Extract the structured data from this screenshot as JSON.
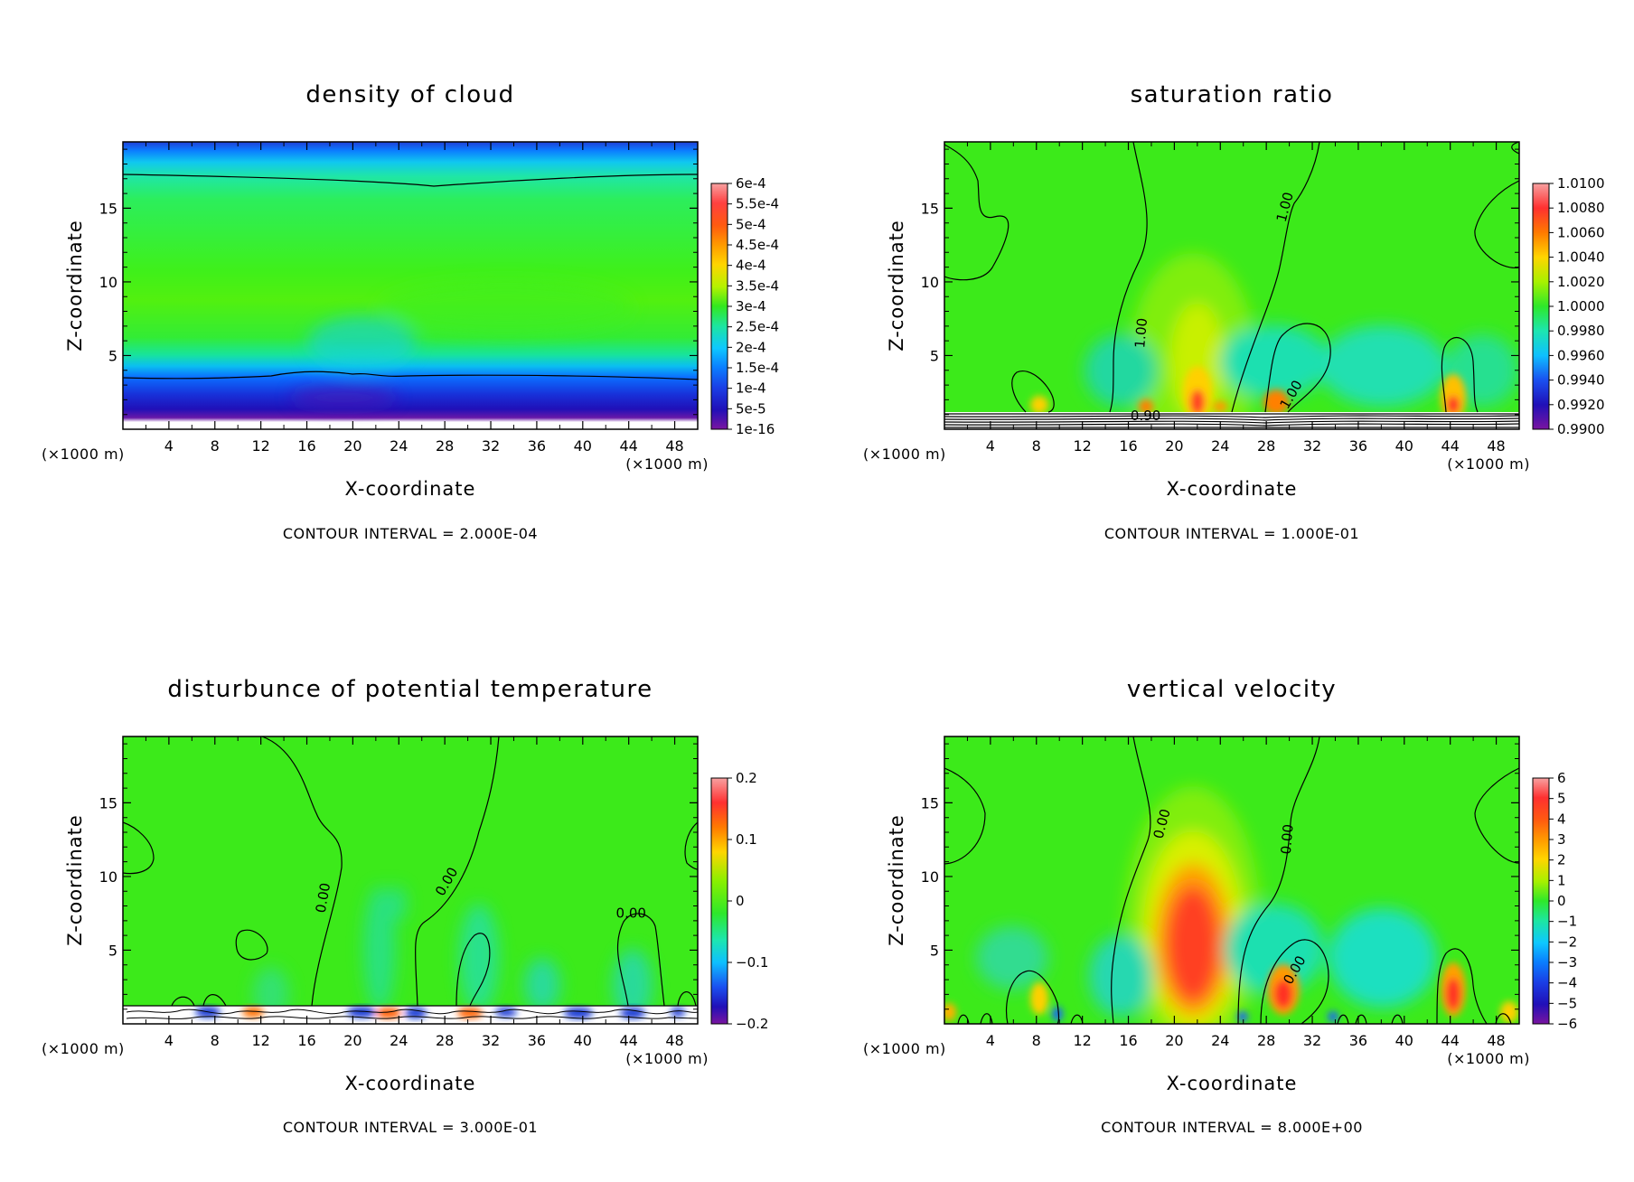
{
  "chart_data": [
    {
      "type": "heatmap",
      "title": "density of cloud",
      "xlabel": "X-coordinate",
      "ylabel": "Z-coordinate",
      "x_unit": "(×1000 m)",
      "y_unit": "(×1000 m)",
      "x_ticks": [
        4,
        8,
        12,
        16,
        20,
        24,
        28,
        32,
        36,
        40,
        44,
        48
      ],
      "y_ticks": [
        5,
        10,
        15
      ],
      "xlim": [
        0,
        50
      ],
      "ylim": [
        0,
        19.5
      ],
      "colorbar": {
        "labels": [
          "6e-4",
          "5.5e-4",
          "5e-4",
          "4.5e-4",
          "4e-4",
          "3.5e-4",
          "3e-4",
          "2.5e-4",
          "2e-4",
          "1.5e-4",
          "1e-4",
          "5e-5",
          "1e-16"
        ]
      },
      "contour_interval": "CONTOUR INTERVAL = 2.000E-04",
      "contour_labels": []
    },
    {
      "type": "heatmap",
      "title": "saturation ratio",
      "xlabel": "X-coordinate",
      "ylabel": "Z-coordinate",
      "x_unit": "(×1000 m)",
      "y_unit": "(×1000 m)",
      "x_ticks": [
        4,
        8,
        12,
        16,
        20,
        24,
        28,
        32,
        36,
        40,
        44,
        48
      ],
      "y_ticks": [
        5,
        10,
        15
      ],
      "xlim": [
        0,
        50
      ],
      "ylim": [
        0,
        19.5
      ],
      "colorbar": {
        "labels": [
          "1.0100",
          "1.0080",
          "1.0060",
          "1.0040",
          "1.0020",
          "1.0000",
          "0.9980",
          "0.9960",
          "0.9940",
          "0.9920",
          "0.9900"
        ]
      },
      "contour_interval": "CONTOUR INTERVAL = 1.000E-01",
      "contour_labels": [
        {
          "text": "1.00",
          "x": 30,
          "z": 15,
          "rot": -75
        },
        {
          "text": "1.00",
          "x": 17.5,
          "z": 6.5,
          "rot": -85
        },
        {
          "text": "1.00",
          "x": 30.5,
          "z": 2.2,
          "rot": -60
        },
        {
          "text": "0.90",
          "x": 17.5,
          "z": 0.6,
          "rot": 0
        }
      ]
    },
    {
      "type": "heatmap",
      "title": "disturbunce of potential temperature",
      "xlabel": "X-coordinate",
      "ylabel": "Z-coordinate",
      "x_unit": "(×1000 m)",
      "y_unit": "(×1000 m)",
      "x_ticks": [
        4,
        8,
        12,
        16,
        20,
        24,
        28,
        32,
        36,
        40,
        44,
        48
      ],
      "y_ticks": [
        5,
        10,
        15
      ],
      "xlim": [
        0,
        50
      ],
      "ylim": [
        0,
        19.5
      ],
      "colorbar": {
        "labels": [
          "0.2",
          "0.1",
          "0",
          "−0.1",
          "−0.2"
        ]
      },
      "contour_interval": "CONTOUR INTERVAL = 3.000E-01",
      "contour_labels": [
        {
          "text": "0.00",
          "x": 17.8,
          "z": 8.5,
          "rot": -80
        },
        {
          "text": "0.00",
          "x": 28.5,
          "z": 9.5,
          "rot": -60
        },
        {
          "text": "0.00",
          "x": 44.2,
          "z": 7.2,
          "rot": 0
        }
      ]
    },
    {
      "type": "heatmap",
      "title": "vertical velocity",
      "xlabel": "X-coordinate",
      "ylabel": "Z-coordinate",
      "x_unit": "(×1000 m)",
      "y_unit": "(×1000 m)",
      "x_ticks": [
        4,
        8,
        12,
        16,
        20,
        24,
        28,
        32,
        36,
        40,
        44,
        48
      ],
      "y_ticks": [
        5,
        10,
        15
      ],
      "xlim": [
        0,
        50
      ],
      "ylim": [
        0,
        19.5
      ],
      "colorbar": {
        "labels": [
          "6",
          "5",
          "4",
          "3",
          "2",
          "1",
          "0",
          "−1",
          "−2",
          "−3",
          "−4",
          "−5",
          "−6"
        ]
      },
      "contour_interval": "CONTOUR INTERVAL = 8.000E+00",
      "contour_labels": [
        {
          "text": "0.00",
          "x": 19.3,
          "z": 13.5,
          "rot": -75
        },
        {
          "text": "0.00",
          "x": 30.2,
          "z": 12.5,
          "rot": -85
        },
        {
          "text": "0.00",
          "x": 30.8,
          "z": 3.5,
          "rot": -60
        }
      ]
    }
  ]
}
